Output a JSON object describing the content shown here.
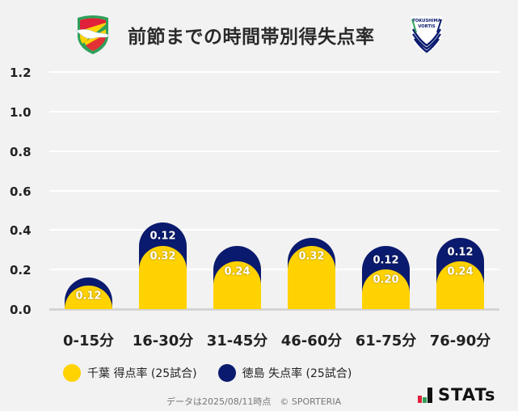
{
  "header": {
    "title": "前節までの時間帯別得失点率",
    "home_logo": "jef-united-chiba-crest-icon",
    "away_logo": "tokushima-vortis-crest-icon",
    "away_logo_text_1": "TOKUSHIMA",
    "away_logo_text_2": "VORTIS"
  },
  "colors": {
    "home": "#ffd200",
    "away": "#0a1a6e",
    "background": "#f2f2f2",
    "grid": "#ffffff",
    "baseline": "#d4d4d4"
  },
  "chart_data": {
    "type": "bar",
    "stacked": true,
    "title": "前節までの時間帯別得失点率",
    "xlabel": "",
    "ylabel": "",
    "ylim": [
      0,
      1.2
    ],
    "yticks": [
      "0.0",
      "0.2",
      "0.4",
      "0.6",
      "0.8",
      "1.0",
      "1.2"
    ],
    "grid": true,
    "legend_position": "bottom",
    "categories": [
      "0-15分",
      "16-30分",
      "31-45分",
      "46-60分",
      "61-75分",
      "76-90分"
    ],
    "series": [
      {
        "name": "千葉 得点率 (25試合)",
        "color": "#ffd200",
        "values": [
          0.12,
          0.32,
          0.24,
          0.32,
          0.2,
          0.24
        ],
        "labels": [
          "0.12",
          "0.32",
          "0.24",
          "0.32",
          "0.20",
          "0.24"
        ]
      },
      {
        "name": "徳島 失点率 (25試合)",
        "color": "#0a1a6e",
        "values": [
          0.04,
          0.12,
          0.08,
          0.04,
          0.12,
          0.12
        ],
        "labels": [
          "",
          "0.12",
          "",
          "",
          "0.12",
          "0.12"
        ]
      }
    ]
  },
  "legend": {
    "items": [
      {
        "label": "千葉 得点率 (25試合)",
        "color": "#ffd200"
      },
      {
        "label": "徳島 失点率 (25試合)",
        "color": "#0a1a6e"
      }
    ]
  },
  "footer": {
    "note": "データは2025/08/11時点　© SPORTERIA",
    "brand": "STATs"
  }
}
